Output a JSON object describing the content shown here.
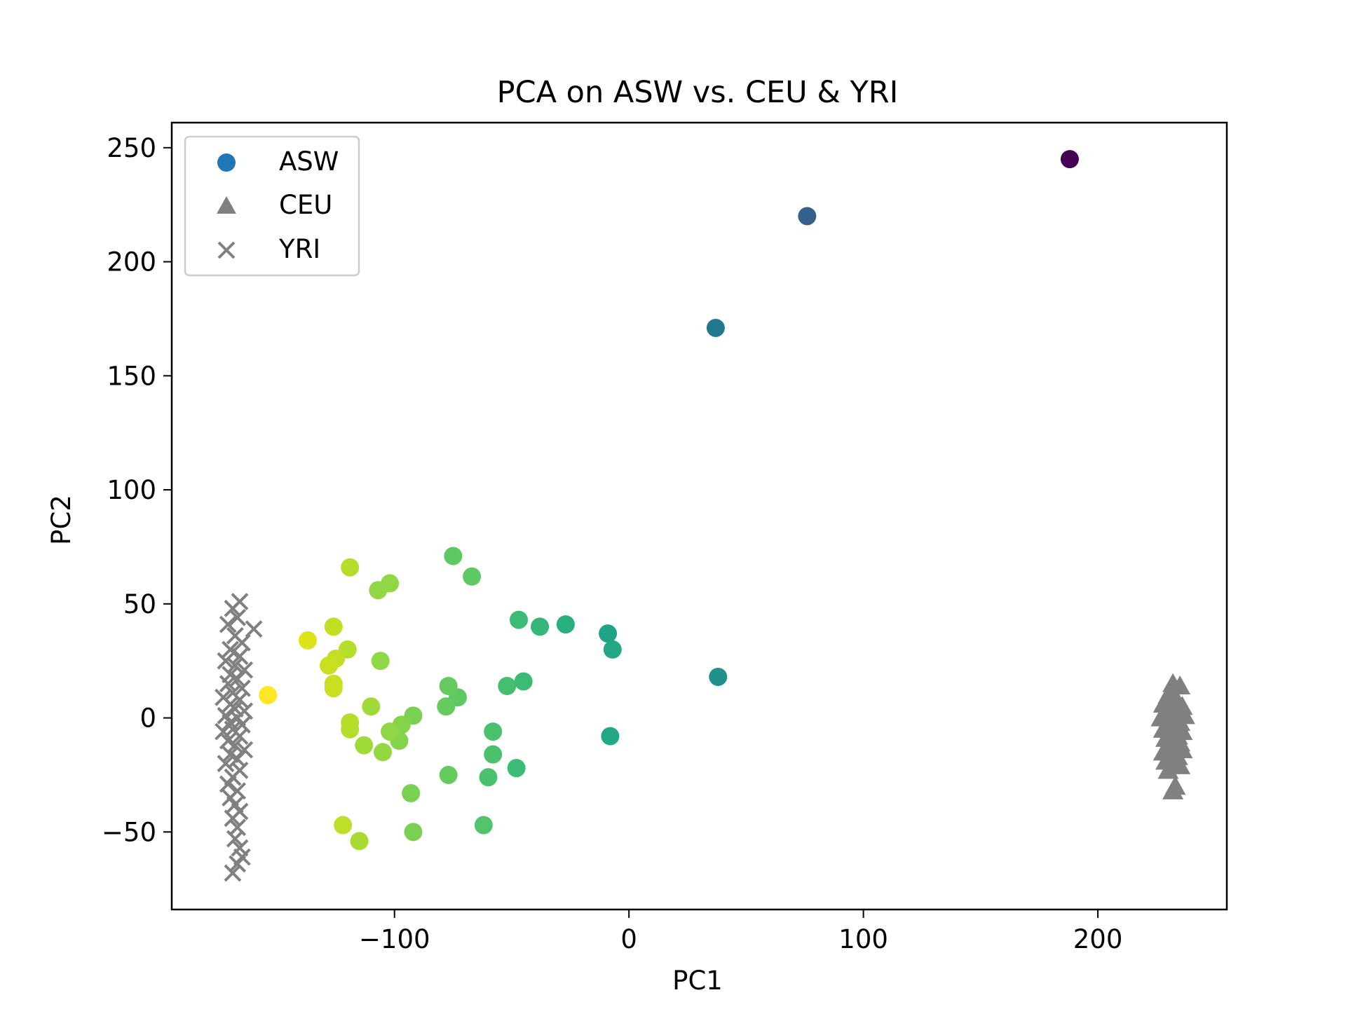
{
  "chart_data": {
    "type": "scatter",
    "title": "PCA on ASW vs. CEU & YRI",
    "xlabel": "PC1",
    "ylabel": "PC2",
    "xlim": [
      -195,
      255
    ],
    "ylim": [
      -84,
      261
    ],
    "xticks": [
      -100,
      0,
      100,
      200
    ],
    "xtick_labels": [
      "−100",
      "0",
      "100",
      "200"
    ],
    "yticks": [
      -50,
      0,
      50,
      100,
      150,
      200,
      250
    ],
    "ytick_labels": [
      "−50",
      "0",
      "50",
      "100",
      "150",
      "200",
      "250"
    ],
    "grid": false,
    "legend": {
      "position": "top-left",
      "entries": [
        {
          "label": "ASW",
          "marker": "circle",
          "color": "#1f77b4"
        },
        {
          "label": "CEU",
          "marker": "triangle",
          "color": "#808080"
        },
        {
          "label": "YRI",
          "marker": "x",
          "color": "#808080"
        }
      ]
    },
    "series": [
      {
        "name": "ASW",
        "marker": "circle",
        "color_map": "viridis",
        "note_color": "colored by PC1 (high PC1 = dark purple, low PC1 = yellow)",
        "points": [
          {
            "x": 188,
            "y": 245,
            "color": "#440154"
          },
          {
            "x": 76,
            "y": 220,
            "color": "#355f8d"
          },
          {
            "x": 37,
            "y": 171,
            "color": "#21798e"
          },
          {
            "x": 38,
            "y": 18,
            "color": "#21918c"
          },
          {
            "x": -9,
            "y": 37,
            "color": "#20a386"
          },
          {
            "x": -7,
            "y": 30,
            "color": "#22a884"
          },
          {
            "x": -8,
            "y": -8,
            "color": "#22a884"
          },
          {
            "x": -27,
            "y": 41,
            "color": "#2ab07f"
          },
          {
            "x": -38,
            "y": 40,
            "color": "#35b779"
          },
          {
            "x": -47,
            "y": 43,
            "color": "#3bbb75"
          },
          {
            "x": -45,
            "y": 16,
            "color": "#3bbb75"
          },
          {
            "x": -52,
            "y": 14,
            "color": "#44bf70"
          },
          {
            "x": -48,
            "y": -22,
            "color": "#3bbb75"
          },
          {
            "x": -58,
            "y": -6,
            "color": "#4ac16d"
          },
          {
            "x": -58,
            "y": -16,
            "color": "#4ac16d"
          },
          {
            "x": -60,
            "y": -26,
            "color": "#4ac16d"
          },
          {
            "x": -62,
            "y": -47,
            "color": "#52c569"
          },
          {
            "x": -67,
            "y": 62,
            "color": "#5ec962"
          },
          {
            "x": -75,
            "y": 71,
            "color": "#5ec962"
          },
          {
            "x": -73,
            "y": 9,
            "color": "#5ec962"
          },
          {
            "x": -77,
            "y": 14,
            "color": "#65cb5e"
          },
          {
            "x": -78,
            "y": 5,
            "color": "#65cb5e"
          },
          {
            "x": -77,
            "y": -25,
            "color": "#65cb5e"
          },
          {
            "x": -92,
            "y": 1,
            "color": "#7ad151"
          },
          {
            "x": -93,
            "y": -33,
            "color": "#7ad151"
          },
          {
            "x": -92,
            "y": -50,
            "color": "#7ad151"
          },
          {
            "x": -97,
            "y": -3,
            "color": "#84d44b"
          },
          {
            "x": -98,
            "y": -10,
            "color": "#84d44b"
          },
          {
            "x": -102,
            "y": 59,
            "color": "#8fd744"
          },
          {
            "x": -107,
            "y": 56,
            "color": "#8fd744"
          },
          {
            "x": -106,
            "y": 25,
            "color": "#8fd744"
          },
          {
            "x": -102,
            "y": -6,
            "color": "#8fd744"
          },
          {
            "x": -105,
            "y": -15,
            "color": "#93d741"
          },
          {
            "x": -110,
            "y": 5,
            "color": "#a0da39"
          },
          {
            "x": -113,
            "y": -12,
            "color": "#a0da39"
          },
          {
            "x": -115,
            "y": -54,
            "color": "#a8db34"
          },
          {
            "x": -119,
            "y": 66,
            "color": "#b5de2b"
          },
          {
            "x": -120,
            "y": 30,
            "color": "#b5de2b"
          },
          {
            "x": -119,
            "y": -2,
            "color": "#b5de2b"
          },
          {
            "x": -119,
            "y": -5,
            "color": "#b5de2b"
          },
          {
            "x": -122,
            "y": -47,
            "color": "#bddf26"
          },
          {
            "x": -126,
            "y": 40,
            "color": "#c2df23"
          },
          {
            "x": -125,
            "y": 26,
            "color": "#c2df23"
          },
          {
            "x": -128,
            "y": 23,
            "color": "#c8e020"
          },
          {
            "x": -126,
            "y": 15,
            "color": "#c8e020"
          },
          {
            "x": -126,
            "y": 13,
            "color": "#c8e020"
          },
          {
            "x": -137,
            "y": 34,
            "color": "#dde318"
          },
          {
            "x": -154,
            "y": 10,
            "color": "#fde725"
          }
        ]
      },
      {
        "name": "CEU",
        "marker": "triangle",
        "color": "#808080",
        "points": [
          {
            "x": 232,
            "y": 15
          },
          {
            "x": 235,
            "y": 14
          },
          {
            "x": 230,
            "y": 10
          },
          {
            "x": 233,
            "y": 9
          },
          {
            "x": 228,
            "y": 6
          },
          {
            "x": 236,
            "y": 5
          },
          {
            "x": 231,
            "y": 4
          },
          {
            "x": 234,
            "y": 3
          },
          {
            "x": 229,
            "y": 2
          },
          {
            "x": 237,
            "y": 1
          },
          {
            "x": 227,
            "y": 0
          },
          {
            "x": 232,
            "y": -1
          },
          {
            "x": 235,
            "y": -2
          },
          {
            "x": 230,
            "y": -3
          },
          {
            "x": 233,
            "y": -4
          },
          {
            "x": 228,
            "y": -5
          },
          {
            "x": 236,
            "y": -6
          },
          {
            "x": 231,
            "y": -7
          },
          {
            "x": 234,
            "y": -8
          },
          {
            "x": 229,
            "y": -9
          },
          {
            "x": 232,
            "y": -10
          },
          {
            "x": 235,
            "y": -11
          },
          {
            "x": 230,
            "y": -12
          },
          {
            "x": 233,
            "y": -13
          },
          {
            "x": 236,
            "y": -14
          },
          {
            "x": 228,
            "y": -15
          },
          {
            "x": 231,
            "y": -16
          },
          {
            "x": 234,
            "y": -17
          },
          {
            "x": 229,
            "y": -19
          },
          {
            "x": 232,
            "y": -20
          },
          {
            "x": 235,
            "y": -21
          },
          {
            "x": 230,
            "y": -23
          },
          {
            "x": 233,
            "y": -30
          },
          {
            "x": 232,
            "y": -32
          }
        ]
      },
      {
        "name": "YRI",
        "marker": "x",
        "color": "#808080",
        "points": [
          {
            "x": -166,
            "y": 51
          },
          {
            "x": -169,
            "y": 48
          },
          {
            "x": -160,
            "y": 39
          },
          {
            "x": -167,
            "y": 44
          },
          {
            "x": -171,
            "y": 41
          },
          {
            "x": -168,
            "y": 36
          },
          {
            "x": -165,
            "y": 33
          },
          {
            "x": -170,
            "y": 30
          },
          {
            "x": -166,
            "y": 27
          },
          {
            "x": -172,
            "y": 25
          },
          {
            "x": -168,
            "y": 23
          },
          {
            "x": -164,
            "y": 21
          },
          {
            "x": -170,
            "y": 19
          },
          {
            "x": -167,
            "y": 17
          },
          {
            "x": -171,
            "y": 15
          },
          {
            "x": -165,
            "y": 13
          },
          {
            "x": -169,
            "y": 11
          },
          {
            "x": -173,
            "y": 9
          },
          {
            "x": -166,
            "y": 8
          },
          {
            "x": -170,
            "y": 6
          },
          {
            "x": -168,
            "y": 4
          },
          {
            "x": -164,
            "y": 3
          },
          {
            "x": -172,
            "y": 1
          },
          {
            "x": -167,
            "y": 0
          },
          {
            "x": -170,
            "y": -2
          },
          {
            "x": -165,
            "y": -3
          },
          {
            "x": -169,
            "y": -5
          },
          {
            "x": -173,
            "y": -6
          },
          {
            "x": -166,
            "y": -8
          },
          {
            "x": -171,
            "y": -10
          },
          {
            "x": -168,
            "y": -12
          },
          {
            "x": -164,
            "y": -14
          },
          {
            "x": -170,
            "y": -16
          },
          {
            "x": -167,
            "y": -18
          },
          {
            "x": -172,
            "y": -20
          },
          {
            "x": -166,
            "y": -23
          },
          {
            "x": -169,
            "y": -26
          },
          {
            "x": -171,
            "y": -29
          },
          {
            "x": -167,
            "y": -32
          },
          {
            "x": -170,
            "y": -35
          },
          {
            "x": -168,
            "y": -38
          },
          {
            "x": -166,
            "y": -41
          },
          {
            "x": -169,
            "y": -44
          },
          {
            "x": -167,
            "y": -48
          },
          {
            "x": -168,
            "y": -53
          },
          {
            "x": -166,
            "y": -57
          },
          {
            "x": -165,
            "y": -61
          },
          {
            "x": -167,
            "y": -64
          },
          {
            "x": -169,
            "y": -68
          }
        ]
      }
    ]
  }
}
